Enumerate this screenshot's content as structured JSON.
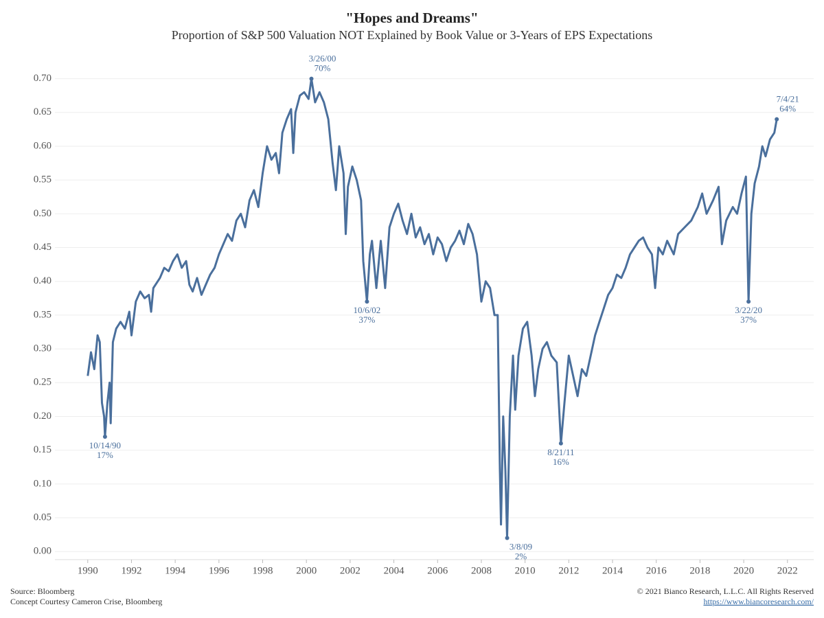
{
  "chart_data": {
    "type": "line",
    "title": "\"Hopes and Dreams\"",
    "subtitle": "Proportion of S&P 500 Valuation NOT Explained by Book Value or 3-Years of EPS Expectations",
    "color": "#4a6f9c",
    "grid": true,
    "xlim": [
      1988.5,
      2023.2
    ],
    "ylim": [
      -0.012,
      0.725
    ],
    "xticks": [
      1990,
      1992,
      1994,
      1996,
      1998,
      2000,
      2002,
      2004,
      2006,
      2008,
      2010,
      2012,
      2014,
      2016,
      2018,
      2020,
      2022
    ],
    "yticks": [
      {
        "value": 0,
        "label": "0.00"
      },
      {
        "value": 0.05,
        "label": "0.05"
      },
      {
        "value": 0.1,
        "label": "0.10"
      },
      {
        "value": 0.15,
        "label": "0.15"
      },
      {
        "value": 0.2,
        "label": "0.20"
      },
      {
        "value": 0.25,
        "label": "0.25"
      },
      {
        "value": 0.3,
        "label": "0.30"
      },
      {
        "value": 0.35,
        "label": "0.35"
      },
      {
        "value": 0.4,
        "label": "0.40"
      },
      {
        "value": 0.45,
        "label": "0.45"
      },
      {
        "value": 0.5,
        "label": "0.50"
      },
      {
        "value": 0.55,
        "label": "0.55"
      },
      {
        "value": 0.6,
        "label": "0.60"
      },
      {
        "value": 0.65,
        "label": "0.65"
      },
      {
        "value": 0.7,
        "label": "0.70"
      }
    ],
    "x": [
      1990.0,
      1990.15,
      1990.3,
      1990.45,
      1990.55,
      1990.65,
      1990.75,
      1990.79,
      1990.9,
      1991.0,
      1991.05,
      1991.15,
      1991.3,
      1991.5,
      1991.7,
      1991.9,
      1992.0,
      1992.2,
      1992.4,
      1992.6,
      1992.8,
      1992.9,
      1993.0,
      1993.3,
      1993.5,
      1993.7,
      1993.9,
      1994.1,
      1994.3,
      1994.5,
      1994.65,
      1994.8,
      1995.0,
      1995.2,
      1995.4,
      1995.6,
      1995.8,
      1996.0,
      1996.2,
      1996.4,
      1996.6,
      1996.8,
      1997.0,
      1997.2,
      1997.4,
      1997.6,
      1997.8,
      1998.0,
      1998.2,
      1998.4,
      1998.6,
      1998.75,
      1998.9,
      1999.1,
      1999.3,
      1999.4,
      1999.5,
      1999.7,
      1999.9,
      2000.1,
      2000.23,
      2000.4,
      2000.6,
      2000.8,
      2001.0,
      2001.2,
      2001.35,
      2001.5,
      2001.7,
      2001.8,
      2001.9,
      2002.1,
      2002.3,
      2002.5,
      2002.6,
      2002.77,
      2002.9,
      2003.0,
      2003.2,
      2003.4,
      2003.6,
      2003.8,
      2004.0,
      2004.2,
      2004.4,
      2004.6,
      2004.8,
      2005.0,
      2005.2,
      2005.4,
      2005.6,
      2005.8,
      2006.0,
      2006.2,
      2006.4,
      2006.6,
      2006.8,
      2007.0,
      2007.2,
      2007.4,
      2007.6,
      2007.8,
      2008.0,
      2008.2,
      2008.4,
      2008.6,
      2008.75,
      2008.85,
      2008.9,
      2009.0,
      2009.1,
      2009.18,
      2009.3,
      2009.45,
      2009.55,
      2009.7,
      2009.9,
      2010.1,
      2010.3,
      2010.45,
      2010.6,
      2010.8,
      2011.0,
      2011.2,
      2011.45,
      2011.64,
      2011.8,
      2012.0,
      2012.2,
      2012.4,
      2012.6,
      2012.8,
      2013.0,
      2013.2,
      2013.4,
      2013.6,
      2013.8,
      2014.0,
      2014.2,
      2014.4,
      2014.6,
      2014.8,
      2015.0,
      2015.2,
      2015.4,
      2015.6,
      2015.8,
      2015.95,
      2016.1,
      2016.3,
      2016.5,
      2016.8,
      2017.0,
      2017.3,
      2017.6,
      2017.9,
      2018.1,
      2018.3,
      2018.6,
      2018.85,
      2019.0,
      2019.2,
      2019.5,
      2019.7,
      2019.9,
      2020.1,
      2020.22,
      2020.35,
      2020.5,
      2020.7,
      2020.85,
      2021.0,
      2021.2,
      2021.4,
      2021.51
    ],
    "values": [
      0.26,
      0.295,
      0.27,
      0.32,
      0.31,
      0.22,
      0.2,
      0.17,
      0.22,
      0.25,
      0.19,
      0.31,
      0.33,
      0.34,
      0.33,
      0.355,
      0.32,
      0.37,
      0.385,
      0.375,
      0.38,
      0.355,
      0.39,
      0.405,
      0.42,
      0.415,
      0.43,
      0.44,
      0.42,
      0.43,
      0.395,
      0.385,
      0.405,
      0.38,
      0.395,
      0.41,
      0.42,
      0.44,
      0.455,
      0.47,
      0.46,
      0.49,
      0.5,
      0.48,
      0.52,
      0.535,
      0.51,
      0.56,
      0.6,
      0.58,
      0.59,
      0.56,
      0.62,
      0.64,
      0.655,
      0.59,
      0.65,
      0.675,
      0.68,
      0.67,
      0.7,
      0.665,
      0.68,
      0.665,
      0.64,
      0.575,
      0.535,
      0.6,
      0.56,
      0.47,
      0.54,
      0.57,
      0.55,
      0.52,
      0.43,
      0.37,
      0.44,
      0.46,
      0.39,
      0.46,
      0.39,
      0.48,
      0.5,
      0.515,
      0.49,
      0.47,
      0.5,
      0.465,
      0.48,
      0.455,
      0.47,
      0.44,
      0.465,
      0.455,
      0.43,
      0.45,
      0.46,
      0.475,
      0.455,
      0.485,
      0.47,
      0.44,
      0.37,
      0.4,
      0.39,
      0.35,
      0.35,
      0.12,
      0.04,
      0.2,
      0.12,
      0.02,
      0.2,
      0.29,
      0.21,
      0.29,
      0.33,
      0.34,
      0.29,
      0.23,
      0.27,
      0.3,
      0.31,
      0.29,
      0.28,
      0.16,
      0.22,
      0.29,
      0.26,
      0.23,
      0.27,
      0.26,
      0.29,
      0.32,
      0.34,
      0.36,
      0.38,
      0.39,
      0.41,
      0.405,
      0.42,
      0.44,
      0.45,
      0.46,
      0.465,
      0.45,
      0.44,
      0.39,
      0.45,
      0.44,
      0.46,
      0.44,
      0.47,
      0.48,
      0.49,
      0.51,
      0.53,
      0.5,
      0.52,
      0.54,
      0.455,
      0.49,
      0.51,
      0.5,
      0.53,
      0.555,
      0.37,
      0.5,
      0.545,
      0.57,
      0.6,
      0.585,
      0.61,
      0.62,
      0.64
    ],
    "annotations": [
      {
        "x": 1990.79,
        "value": 0.17,
        "date": "10/14/90",
        "label": "17%"
      },
      {
        "x": 2000.23,
        "value": 0.7,
        "date": "3/26/00",
        "label": "70%"
      },
      {
        "x": 2002.77,
        "value": 0.37,
        "date": "10/6/02",
        "label": "37%"
      },
      {
        "x": 2009.18,
        "value": 0.02,
        "date": "3/8/09",
        "label": "2%"
      },
      {
        "x": 2011.64,
        "value": 0.16,
        "date": "8/21/11",
        "label": "16%"
      },
      {
        "x": 2020.22,
        "value": 0.37,
        "date": "3/22/20",
        "label": "37%"
      },
      {
        "x": 2021.51,
        "value": 0.64,
        "date": "7/4/21",
        "label": "64%"
      }
    ]
  },
  "footer": {
    "source": "Source: Bloomberg",
    "concept": "Concept Courtesy Cameron Crise, Bloomberg",
    "copyright": "© 2021 Bianco Research, L.L.C. All Rights Reserved",
    "url": "https://www.biancoresearch.com/"
  }
}
